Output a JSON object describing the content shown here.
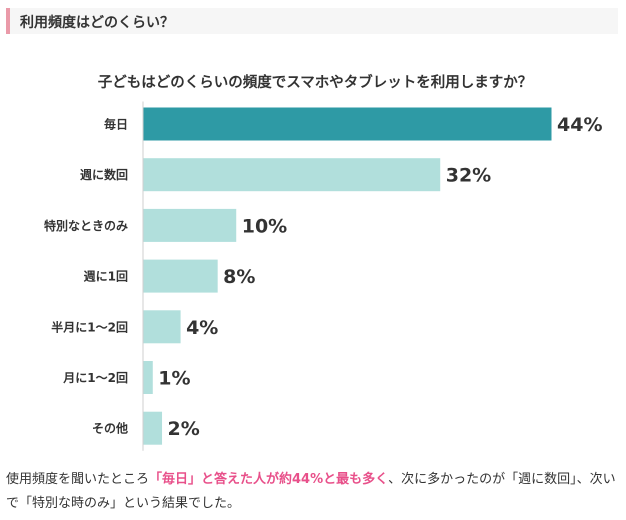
{
  "section": {
    "title": "利用頻度はどのくらい？"
  },
  "colors": {
    "header_accent": "#ea9aa9",
    "highlight_bar": "#2e9aa5",
    "other_bars": "#b1dfdc",
    "highlight_text": "#e8508a"
  },
  "chart_data": {
    "type": "bar",
    "orientation": "horizontal",
    "title": "子どもはどのくらいの頻度でスマホやタブレットを利用しますか？",
    "categories": [
      "毎日",
      "週に数回",
      "特別なときのみ",
      "週に1回",
      "半月に1～2回",
      "月に1～2回",
      "その他"
    ],
    "values": [
      44,
      32,
      10,
      8,
      4,
      1,
      2
    ],
    "value_labels": [
      "44%",
      "32%",
      "10%",
      "8%",
      "4%",
      "1%",
      "2%"
    ],
    "highlight_index": 0,
    "xlim": [
      0,
      44
    ],
    "grid": false,
    "legend": "none"
  },
  "caption": {
    "part1": "使用頻度を聞いたところ",
    "highlight": "「毎日」と答えた人が約44%と最も多く",
    "part2": "、次に多かったのが「週に数回」、次いで「特別な時のみ」という結果でした。"
  }
}
